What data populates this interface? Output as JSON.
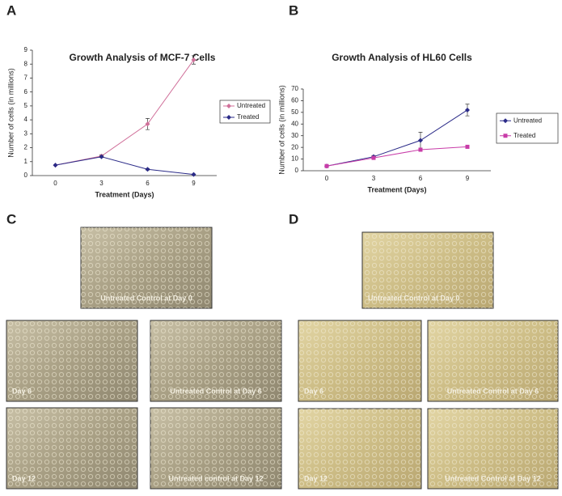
{
  "panels": {
    "a": "A",
    "b": "B",
    "c": "C",
    "d": "D"
  },
  "chart_data": [
    {
      "type": "line",
      "title": "Growth Analysis of MCF-7 Cells",
      "x_label": "Treatment (Days)",
      "y_label": "Number of cells (in millions)",
      "categories": [
        "0",
        "3",
        "6",
        "9"
      ],
      "ylim": [
        0,
        9
      ],
      "yticks": [
        0,
        1,
        2,
        3,
        4,
        5,
        6,
        7,
        8,
        9
      ],
      "legend": "right",
      "series": [
        {
          "name": "Untreated",
          "color": "#d0709a",
          "marker": "diamond",
          "values": [
            0.75,
            1.4,
            3.7,
            8.3
          ],
          "errors": [
            0,
            0.1,
            0.4,
            0.3
          ]
        },
        {
          "name": "Treated",
          "color": "#2b2b88",
          "marker": "diamond",
          "values": [
            0.75,
            1.35,
            0.45,
            0.08
          ],
          "errors": [
            0,
            0.05,
            0.05,
            0.02
          ]
        }
      ]
    },
    {
      "type": "line",
      "title": "Growth Analysis of HL60 Cells",
      "x_label": "Treatment (Days)",
      "y_label": "Number of cells (in millions)",
      "categories": [
        "0",
        "3",
        "6",
        "9"
      ],
      "ylim": [
        0,
        70
      ],
      "yticks": [
        0,
        10,
        20,
        30,
        40,
        50,
        60,
        70
      ],
      "legend": "right",
      "series": [
        {
          "name": "Untreated",
          "color": "#2b2b88",
          "marker": "diamond",
          "values": [
            4,
            12,
            26,
            52
          ],
          "errors": [
            0,
            1,
            7,
            5
          ]
        },
        {
          "name": "Treated",
          "color": "#c83ca8",
          "marker": "square",
          "values": [
            4,
            11,
            18,
            20.5
          ],
          "errors": [
            0,
            0.5,
            1.5,
            0.5
          ]
        }
      ]
    }
  ],
  "images": {
    "c": [
      "Untreated Control at Day 0",
      "Day 6",
      "Untreated Control at Day 6",
      "Day 12",
      "Untreated control at Day 12"
    ],
    "d": [
      "Untreated Control at Day 0",
      "Day 6",
      "Untreated Control at Day 6",
      "Day 12",
      "Untreated Control at Day 12"
    ]
  }
}
